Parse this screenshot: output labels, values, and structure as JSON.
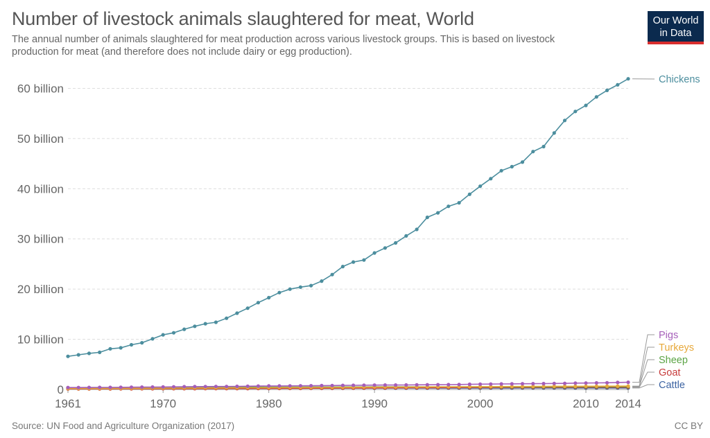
{
  "header": {
    "title": "Number of livestock animals slaughtered for meat, World",
    "subtitle": "The annual number of animals slaughtered for meat production across various livestock groups. This is based on livestock production for meat (and therefore does not include dairy or egg production).",
    "logo_line1": "Our World",
    "logo_line2": "in Data"
  },
  "footer": {
    "source": "Source: UN Food and Agriculture Organization (2017)",
    "license": "CC BY"
  },
  "colors": {
    "Chickens": "#4c8e9e",
    "Pigs": "#a55eb9",
    "Turkeys": "#e7a83a",
    "Sheep": "#5aa344",
    "Goat": "#c73b3b",
    "Cattle": "#3c63a2",
    "grid": "#dddddd",
    "axis_text": "#666666"
  },
  "chart_data": {
    "type": "line",
    "x_start": 1961,
    "x_end": 2014,
    "xlim": [
      1961,
      2014
    ],
    "ylim": [
      0,
      62000000000
    ],
    "x_ticks": [
      {
        "value": 1961,
        "label": "1961"
      },
      {
        "value": 1970,
        "label": "1970"
      },
      {
        "value": 1980,
        "label": "1980"
      },
      {
        "value": 1990,
        "label": "1990"
      },
      {
        "value": 2000,
        "label": "2000"
      },
      {
        "value": 2010,
        "label": "2010"
      },
      {
        "value": 2014,
        "label": "2014"
      }
    ],
    "y_ticks": [
      {
        "value": 0,
        "label": "0"
      },
      {
        "value": 10000000000,
        "label": "10 billion"
      },
      {
        "value": 20000000000,
        "label": "20 billion"
      },
      {
        "value": 30000000000,
        "label": "30 billion"
      },
      {
        "value": 40000000000,
        "label": "40 billion"
      },
      {
        "value": 50000000000,
        "label": "50 billion"
      },
      {
        "value": 60000000000,
        "label": "60 billion"
      }
    ],
    "grid": true,
    "legend": "right",
    "series": [
      {
        "name": "Chickens",
        "values": [
          6600000000.0,
          6900000000.0,
          7200000000.0,
          7400000000.0,
          8100000000.0,
          8300000000.0,
          8900000000.0,
          9300000000.0,
          10100000000.0,
          10900000000.0,
          11300000000.0,
          12000000000.0,
          12600000000.0,
          13100000000.0,
          13400000000.0,
          14200000000.0,
          15200000000.0,
          16200000000.0,
          17300000000.0,
          18300000000.0,
          19300000000.0,
          20000000000.0,
          20400000000.0,
          20700000000.0,
          21600000000.0,
          22900000000.0,
          24500000000.0,
          25400000000.0,
          25800000000.0,
          27200000000.0,
          28200000000.0,
          29200000000.0,
          30600000000.0,
          31900000000.0,
          34300000000.0,
          35200000000.0,
          36500000000.0,
          37200000000.0,
          38900000000.0,
          40500000000.0,
          42000000000.0,
          43600000000.0,
          44400000000.0,
          45300000000.0,
          47400000000.0,
          48400000000.0,
          51100000000.0,
          53600000000.0,
          55400000000.0,
          56600000000.0,
          58300000000.0,
          59600000000.0,
          60700000000.0,
          61900000000.0
        ]
      },
      {
        "name": "Pigs",
        "values": [
          380000000.0,
          390000000.0,
          400000000.0,
          410000000.0,
          420000000.0,
          430000000.0,
          450000000.0,
          470000000.0,
          480000000.0,
          500000000.0,
          530000000.0,
          550000000.0,
          570000000.0,
          580000000.0,
          590000000.0,
          600000000.0,
          620000000.0,
          650000000.0,
          680000000.0,
          700000000.0,
          710000000.0,
          720000000.0,
          730000000.0,
          750000000.0,
          770000000.0,
          790000000.0,
          810000000.0,
          830000000.0,
          850000000.0,
          870000000.0,
          880000000.0,
          890000000.0,
          900000000.0,
          920000000.0,
          940000000.0,
          950000000.0,
          970000000.0,
          1000000000.0,
          1040000000.0,
          1060000000.0,
          1080000000.0,
          1100000000.0,
          1120000000.0,
          1140000000.0,
          1160000000.0,
          1180000000.0,
          1200000000.0,
          1220000000.0,
          1270000000.0,
          1290000000.0,
          1310000000.0,
          1340000000.0,
          1390000000.0,
          1430000000.0
        ]
      },
      {
        "name": "Turkeys",
        "values": [
          180000000.0,
          190000000.0,
          200000000.0,
          200000000.0,
          210000000.0,
          220000000.0,
          230000000.0,
          240000000.0,
          250000000.0,
          260000000.0,
          270000000.0,
          280000000.0,
          290000000.0,
          300000000.0,
          310000000.0,
          320000000.0,
          330000000.0,
          340000000.0,
          350000000.0,
          360000000.0,
          370000000.0,
          380000000.0,
          390000000.0,
          400000000.0,
          410000000.0,
          420000000.0,
          430000000.0,
          440000000.0,
          450000000.0,
          460000000.0,
          470000000.0,
          480000000.0,
          490000000.0,
          500000000.0,
          510000000.0,
          520000000.0,
          530000000.0,
          540000000.0,
          550000000.0,
          560000000.0,
          570000000.0,
          580000000.0,
          590000000.0,
          600000000.0,
          610000000.0,
          620000000.0,
          630000000.0,
          640000000.0,
          640000000.0,
          650000000.0,
          650000000.0,
          660000000.0,
          660000000.0,
          670000000.0
        ]
      },
      {
        "name": "Sheep",
        "values": [
          330000000.0,
          340000000.0,
          350000000.0,
          360000000.0,
          370000000.0,
          380000000.0,
          390000000.0,
          400000000.0,
          410000000.0,
          420000000.0,
          430000000.0,
          440000000.0,
          440000000.0,
          450000000.0,
          450000000.0,
          460000000.0,
          460000000.0,
          470000000.0,
          470000000.0,
          480000000.0,
          480000000.0,
          490000000.0,
          490000000.0,
          500000000.0,
          500000000.0,
          500000000.0,
          510000000.0,
          510000000.0,
          510000000.0,
          520000000.0,
          520000000.0,
          520000000.0,
          520000000.0,
          520000000.0,
          520000000.0,
          520000000.0,
          520000000.0,
          520000000.0,
          520000000.0,
          520000000.0,
          520000000.0,
          520000000.0,
          530000000.0,
          530000000.0,
          530000000.0,
          530000000.0,
          540000000.0,
          540000000.0,
          550000000.0,
          550000000.0,
          550000000.0,
          550000000.0,
          560000000.0,
          560000000.0
        ]
      },
      {
        "name": "Goat",
        "values": [
          120000000.0,
          120000000.0,
          130000000.0,
          130000000.0,
          130000000.0,
          140000000.0,
          140000000.0,
          150000000.0,
          150000000.0,
          160000000.0,
          160000000.0,
          170000000.0,
          170000000.0,
          180000000.0,
          180000000.0,
          190000000.0,
          200000000.0,
          200000000.0,
          210000000.0,
          220000000.0,
          220000000.0,
          230000000.0,
          240000000.0,
          250000000.0,
          250000000.0,
          260000000.0,
          270000000.0,
          280000000.0,
          290000000.0,
          300000000.0,
          310000000.0,
          320000000.0,
          330000000.0,
          340000000.0,
          350000000.0,
          360000000.0,
          370000000.0,
          380000000.0,
          390000000.0,
          400000000.0,
          400000000.0,
          410000000.0,
          410000000.0,
          420000000.0,
          420000000.0,
          430000000.0,
          430000000.0,
          430000000.0,
          440000000.0,
          440000000.0,
          440000000.0,
          440000000.0,
          440000000.0,
          440000000.0
        ]
      },
      {
        "name": "Cattle",
        "values": [
          170000000.0,
          170000000.0,
          180000000.0,
          180000000.0,
          180000000.0,
          190000000.0,
          190000000.0,
          200000000.0,
          200000000.0,
          210000000.0,
          210000000.0,
          210000000.0,
          220000000.0,
          220000000.0,
          230000000.0,
          230000000.0,
          230000000.0,
          240000000.0,
          240000000.0,
          240000000.0,
          250000000.0,
          250000000.0,
          250000000.0,
          260000000.0,
          260000000.0,
          260000000.0,
          260000000.0,
          270000000.0,
          270000000.0,
          270000000.0,
          270000000.0,
          280000000.0,
          280000000.0,
          280000000.0,
          280000000.0,
          280000000.0,
          290000000.0,
          290000000.0,
          290000000.0,
          290000000.0,
          290000000.0,
          290000000.0,
          290000000.0,
          300000000.0,
          300000000.0,
          300000000.0,
          300000000.0,
          300000000.0,
          300000000.0,
          300000000.0,
          300000000.0,
          300000000.0,
          300000000.0,
          300000000.0
        ]
      }
    ]
  }
}
